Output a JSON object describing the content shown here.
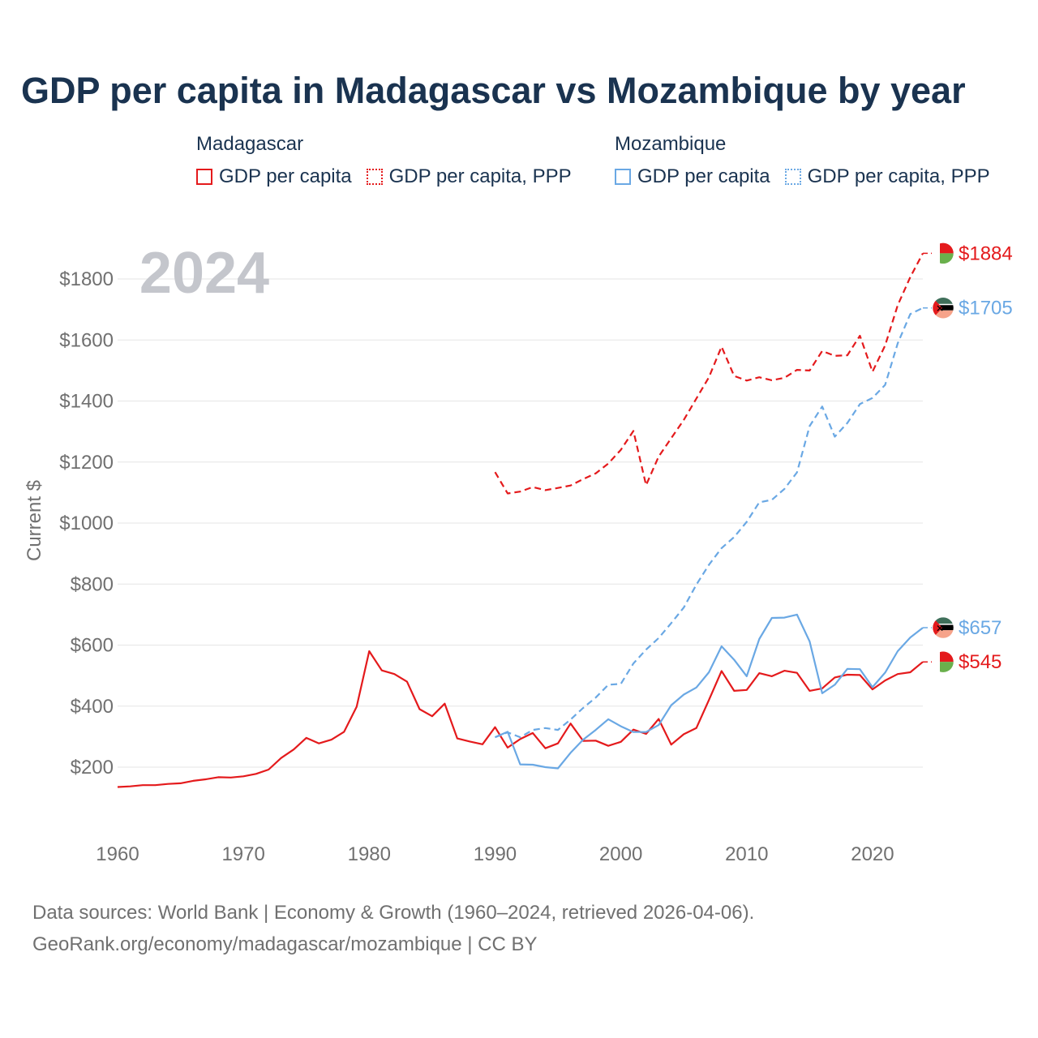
{
  "title": "GDP per capita in Madagascar vs Mozambique by year",
  "legend": {
    "groups": [
      {
        "country": "Madagascar",
        "color": "#e41a1c",
        "items": [
          {
            "label": "GDP per capita",
            "style": "solid"
          },
          {
            "label": "GDP per capita, PPP",
            "style": "dotted"
          }
        ]
      },
      {
        "country": "Mozambique",
        "color": "#6aa8e4",
        "items": [
          {
            "label": "GDP per capita",
            "style": "solid"
          },
          {
            "label": "GDP per capita, PPP",
            "style": "dotted"
          }
        ]
      }
    ]
  },
  "chart_data": {
    "type": "line",
    "title": "GDP per capita in Madagascar vs Mozambique by year",
    "year_label": "2024",
    "ylabel": "Current $",
    "xlabel": "",
    "xlim": [
      1960,
      2024
    ],
    "ylim": [
      100,
      1900
    ],
    "x_ticks": [
      1960,
      1970,
      1980,
      1990,
      2000,
      2010,
      2020
    ],
    "y_ticks": [
      200,
      400,
      600,
      800,
      1000,
      1200,
      1400,
      1600,
      1800
    ],
    "y_tick_labels": [
      "$200",
      "$400",
      "$600",
      "$800",
      "$1000",
      "$1200",
      "$1400",
      "$1600",
      "$1800"
    ],
    "grid": true,
    "series": [
      {
        "name": "Madagascar GDP per capita",
        "country": "Madagascar",
        "color": "#e41a1c",
        "dash": "solid",
        "end_label": "$545",
        "start_year": 1960,
        "values": [
          135,
          137,
          141,
          141,
          145,
          147,
          155,
          160,
          167,
          166,
          170,
          178,
          192,
          230,
          258,
          296,
          278,
          290,
          316,
          398,
          580,
          517,
          505,
          480,
          390,
          367,
          408,
          294,
          284,
          275,
          331,
          264,
          292,
          312,
          262,
          278,
          343,
          286,
          287,
          270,
          283,
          323,
          309,
          358,
          274,
          308,
          328,
          420,
          515,
          450,
          453,
          508,
          498,
          516,
          509,
          450,
          458,
          494,
          503,
          502,
          455,
          484,
          505,
          511,
          545
        ]
      },
      {
        "name": "Madagascar GDP per capita, PPP",
        "country": "Madagascar",
        "color": "#e41a1c",
        "dash": "dashed",
        "end_label": "$1884",
        "start_year": 1990,
        "values": [
          1167,
          1097,
          1103,
          1118,
          1108,
          1115,
          1123,
          1144,
          1163,
          1195,
          1240,
          1302,
          1124,
          1218,
          1278,
          1338,
          1408,
          1478,
          1578,
          1482,
          1467,
          1478,
          1468,
          1476,
          1502,
          1500,
          1564,
          1548,
          1550,
          1614,
          1496,
          1582,
          1714,
          1806,
          1884
        ]
      },
      {
        "name": "Mozambique GDP per capita",
        "country": "Mozambique",
        "color": "#6aa8e4",
        "dash": "solid",
        "end_label": "$657",
        "start_year": 1990,
        "values": [
          298,
          316,
          209,
          208,
          200,
          196,
          247,
          290,
          322,
          357,
          334,
          315,
          315,
          338,
          403,
          438,
          461,
          511,
          596,
          552,
          498,
          620,
          689,
          690,
          700,
          612,
          442,
          470,
          522,
          521,
          462,
          510,
          580,
          625,
          657
        ]
      },
      {
        "name": "Mozambique GDP per capita, PPP",
        "country": "Mozambique",
        "color": "#6aa8e4",
        "dash": "dashed",
        "end_label": "$1705",
        "start_year": 1990,
        "values": [
          298,
          314,
          298,
          322,
          328,
          322,
          356,
          394,
          428,
          470,
          473,
          540,
          585,
          623,
          672,
          723,
          798,
          863,
          918,
          954,
          1004,
          1068,
          1076,
          1112,
          1166,
          1318,
          1382,
          1283,
          1328,
          1390,
          1410,
          1453,
          1589,
          1685,
          1705
        ]
      }
    ]
  },
  "footer": {
    "line1": "Data sources: World Bank | Economy & Growth (1960–2024, retrieved 2026-04-06).",
    "line2": "GeoRank.org/economy/madagascar/mozambique | CC BY"
  },
  "flags": {
    "Madagascar": {
      "colors": [
        "#e41a1c",
        "#6ab04c",
        "#ffffff"
      ]
    },
    "Mozambique": {
      "colors": [
        "#3f6f5a",
        "#000000",
        "#f5d000",
        "#e41a1c",
        "#ffffff"
      ]
    }
  }
}
